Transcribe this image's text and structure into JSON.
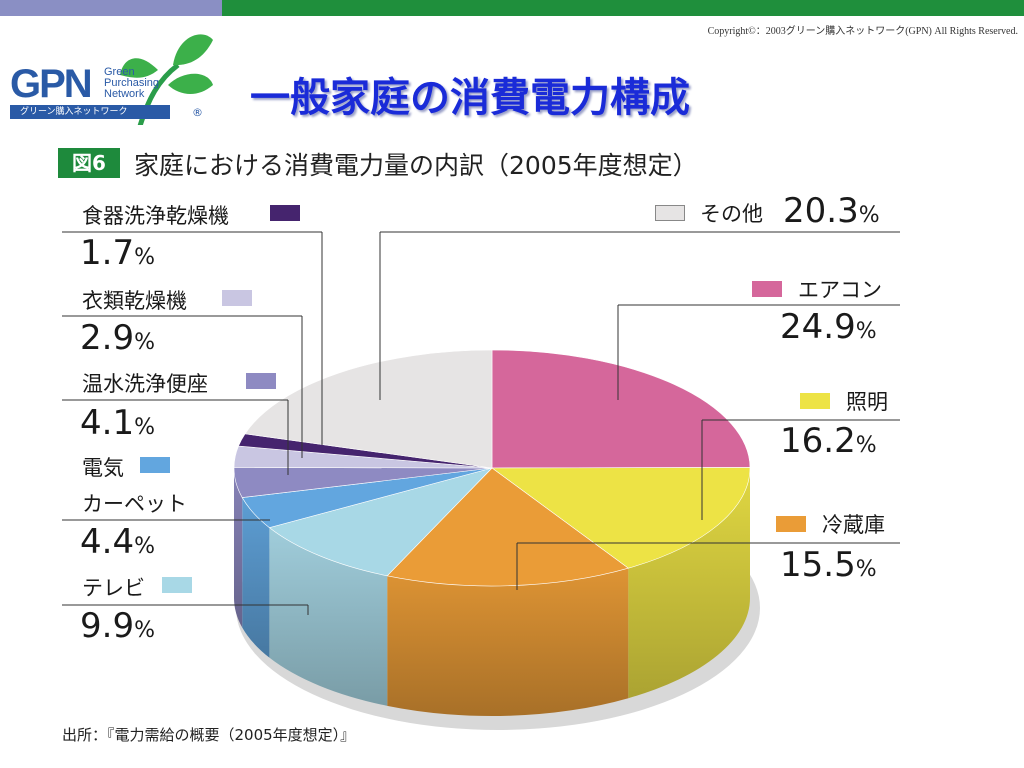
{
  "header": {
    "copyright": "Copyright©：2003グリーン購入ネットワーク(GPN) All Rights Reserved."
  },
  "logo": {
    "mark": "GPN",
    "words": [
      "Green",
      "Purchasing",
      "Network"
    ],
    "jp": "グリーン購入ネットワーク",
    "reg": "®"
  },
  "page_title": "一般家庭の消費電力構成",
  "figure": {
    "badge": "図6",
    "title": "家庭における消費電力量の内訳（2005年度想定）"
  },
  "source": "出所：『電力需給の概要（2005年度想定）』",
  "colors": {
    "other": "#e6e4e4",
    "aircon": "#d5679b",
    "lighting": "#ede345",
    "fridge": "#ea9c37",
    "tv": "#a8d8e6",
    "carpet": "#62a6df",
    "toilet": "#8e8ac2",
    "dryer": "#c9c6e2",
    "dishwasher": "#45246e"
  },
  "chart_data": {
    "type": "pie",
    "title": "家庭における消費電力量の内訳（2005年度想定）",
    "categories": [
      "エアコン",
      "照明",
      "冷蔵庫",
      "テレビ",
      "電気カーペット",
      "温水洗浄便座",
      "衣類乾燥機",
      "食器洗浄乾燥機",
      "その他"
    ],
    "values": [
      24.9,
      16.2,
      15.5,
      9.9,
      4.4,
      4.1,
      2.9,
      1.7,
      20.3
    ],
    "labels": [
      {
        "key": "aircon",
        "name": "エアコン",
        "value": "24.9",
        "unit": "%"
      },
      {
        "key": "lighting",
        "name": "照明",
        "value": "16.2",
        "unit": "%"
      },
      {
        "key": "fridge",
        "name": "冷蔵庫",
        "value": "15.5",
        "unit": "%"
      },
      {
        "key": "tv",
        "name": "テレビ",
        "value": "9.9",
        "unit": "%"
      },
      {
        "key": "carpet",
        "name": "電気",
        "name2": "カーペット",
        "value": "4.4",
        "unit": "%"
      },
      {
        "key": "toilet",
        "name": "温水洗浄便座",
        "value": "4.1",
        "unit": "%"
      },
      {
        "key": "dryer",
        "name": "衣類乾燥機",
        "value": "2.9",
        "unit": "%"
      },
      {
        "key": "dishwasher",
        "name": "食器洗浄乾燥機",
        "value": "1.7",
        "unit": "%"
      },
      {
        "key": "other",
        "name": "その他",
        "value": "20.3",
        "unit": "%"
      }
    ]
  }
}
